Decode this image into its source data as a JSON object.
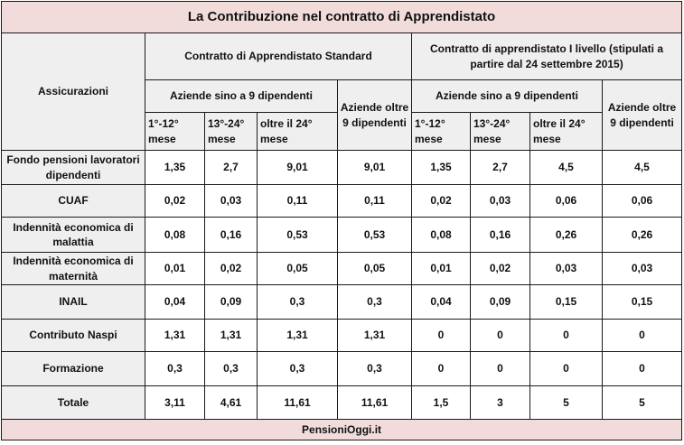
{
  "title": "La Contribuzione nel contratto di Apprendistato",
  "header": {
    "assicurazioni": "Assicurazioni",
    "standard": "Contratto di Apprendistato Standard",
    "livello": "Contratto di apprendistato I livello (stipulati a partire dal 24 settembre 2015)",
    "aziende_sino_9": "Aziende sino a 9 dipendenti",
    "aziende_oltre_9_std": "Aziende oltre 9 dipendenti",
    "aziende_oltre_9_liv": "Aziende oltre 9 dipendenti",
    "m1": "1°-12° mese",
    "m2": "13°-24° mese",
    "m3": "oltre il 24° mese"
  },
  "rows": [
    {
      "label": "Fondo pensioni lavoratori dipendenti",
      "v": [
        "1,35",
        "2,7",
        "9,01",
        "9,01",
        "1,35",
        "2,7",
        "4,5",
        "4,5"
      ]
    },
    {
      "label": "CUAF",
      "v": [
        "0,02",
        "0,03",
        "0,11",
        "0,11",
        "0,02",
        "0,03",
        "0,06",
        "0,06"
      ]
    },
    {
      "label": "Indennità economica di malattia",
      "v": [
        "0,08",
        "0,16",
        "0,53",
        "0,53",
        "0,08",
        "0,16",
        "0,26",
        "0,26"
      ]
    },
    {
      "label": "Indennità economica di maternità",
      "v": [
        "0,01",
        "0,02",
        "0,05",
        "0,05",
        "0,01",
        "0,02",
        "0,03",
        "0,03"
      ]
    },
    {
      "label": "INAIL",
      "v": [
        "0,04",
        "0,09",
        "0,3",
        "0,3",
        "0,04",
        "0,09",
        "0,15",
        "0,15"
      ]
    },
    {
      "label": "Contributo Naspi",
      "v": [
        "1,31",
        "1,31",
        "1,31",
        "1,31",
        "0",
        "0",
        "0",
        "0"
      ]
    },
    {
      "label": "Formazione",
      "v": [
        "0,3",
        "0,3",
        "0,3",
        "0,3",
        "0",
        "0",
        "0",
        "0"
      ]
    },
    {
      "label": "Totale",
      "v": [
        "3,11",
        "4,61",
        "11,61",
        "11,61",
        "1,5",
        "3",
        "5",
        "5"
      ]
    }
  ],
  "footer": "PensioniOggi.it",
  "colors": {
    "title_bg": "#f2dcdb",
    "header_bg": "#efefef",
    "cell_bg": "#ffffff"
  }
}
